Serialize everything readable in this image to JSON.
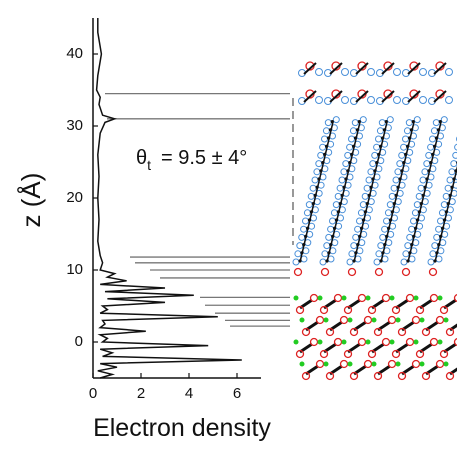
{
  "chart_data": {
    "type": "line",
    "orientation": "vertical",
    "xlabel": "Electron density",
    "ylabel": "z (Å)",
    "annotation": {
      "symbol": "θ",
      "subscript": "t",
      "text": "=  9.5 ± 4°"
    },
    "xlim": [
      0,
      7
    ],
    "xticks": [
      0,
      2,
      4,
      6
    ],
    "ylim": [
      -5,
      45
    ],
    "yticks": [
      0,
      10,
      20,
      30,
      40
    ],
    "color": "#111111",
    "z": [
      -5,
      -4.5,
      -4,
      -3.5,
      -3,
      -2.5,
      -2,
      -1.5,
      -1,
      -0.5,
      0,
      0.5,
      1,
      1.5,
      2,
      2.5,
      3,
      3.5,
      4,
      4.5,
      5,
      5.5,
      6,
      6.5,
      7,
      7.5,
      8,
      8.5,
      9,
      9.5,
      10,
      11,
      12,
      14,
      17,
      20,
      23,
      26,
      29,
      30.5,
      31,
      31.5,
      33,
      34,
      35,
      37,
      40,
      43,
      45
    ],
    "values": [
      0.3,
      0.8,
      0.2,
      1.0,
      0.3,
      6.2,
      0.4,
      0.8,
      0.3,
      4.8,
      0.4,
      0.6,
      0.3,
      2.2,
      0.3,
      0.5,
      0.4,
      5.2,
      0.3,
      0.6,
      0.4,
      3.0,
      0.6,
      4.2,
      0.5,
      3.0,
      0.3,
      1.4,
      0.6,
      0.9,
      0.3,
      0.4,
      0.3,
      0.2,
      0.25,
      0.2,
      0.25,
      0.2,
      0.3,
      0.5,
      0.9,
      0.4,
      0.25,
      0.3,
      0.15,
      0.2,
      0.35,
      0.2,
      0.2
    ],
    "layer_boundaries": [
      34.5,
      31,
      11.8,
      11,
      10,
      8.9,
      6.2,
      5.1,
      4,
      3,
      2.2
    ]
  }
}
